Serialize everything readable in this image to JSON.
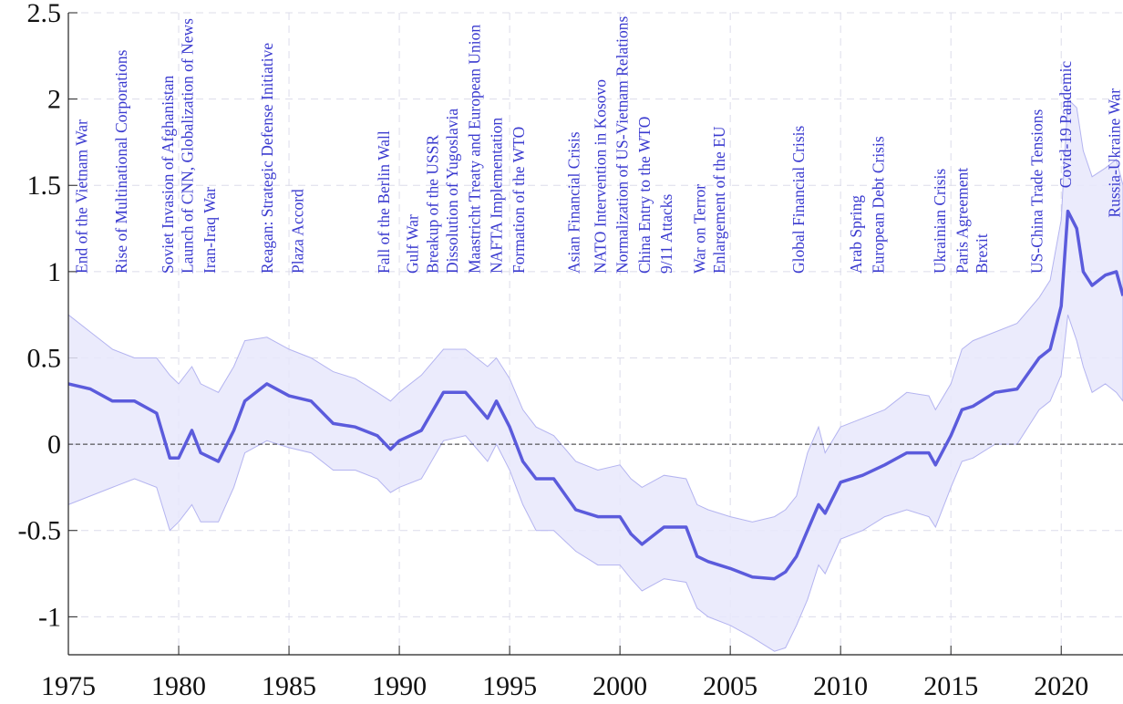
{
  "chart_data": {
    "type": "line",
    "x": [
      1975,
      1976,
      1977,
      1978,
      1979,
      1979.6,
      1980,
      1980.6,
      1981,
      1981.8,
      1982.5,
      1983,
      1984,
      1985,
      1986,
      1987,
      1988,
      1989,
      1989.6,
      1990,
      1991,
      1992,
      1993,
      1994,
      1994.4,
      1995,
      1995.6,
      1996.2,
      1997,
      1998,
      1999,
      2000,
      2000.5,
      2001,
      2002,
      2003,
      2003.5,
      2004,
      2005,
      2006,
      2007,
      2007.5,
      2008,
      2008.5,
      2009,
      2009.3,
      2010,
      2011,
      2012,
      2013,
      2014,
      2014.3,
      2015,
      2015.5,
      2016,
      2017,
      2018,
      2019,
      2019.5,
      2020,
      2020.3,
      2020.7,
      2021,
      2021.4,
      2022,
      2022.5,
      2022.8
    ],
    "values": [
      0.35,
      0.32,
      0.25,
      0.25,
      0.18,
      -0.08,
      -0.08,
      0.08,
      -0.05,
      -0.1,
      0.08,
      0.25,
      0.35,
      0.28,
      0.25,
      0.12,
      0.1,
      0.05,
      -0.03,
      0.02,
      0.08,
      0.3,
      0.3,
      0.15,
      0.25,
      0.1,
      -0.1,
      -0.2,
      -0.2,
      -0.38,
      -0.42,
      -0.42,
      -0.52,
      -0.58,
      -0.48,
      -0.48,
      -0.65,
      -0.68,
      -0.72,
      -0.77,
      -0.78,
      -0.74,
      -0.65,
      -0.5,
      -0.35,
      -0.4,
      -0.22,
      -0.18,
      -0.12,
      -0.05,
      -0.05,
      -0.12,
      0.05,
      0.2,
      0.22,
      0.3,
      0.32,
      0.5,
      0.55,
      0.8,
      1.35,
      1.25,
      1.0,
      0.92,
      0.98,
      1.0,
      0.86
    ],
    "upper": [
      0.75,
      0.65,
      0.55,
      0.5,
      0.5,
      0.4,
      0.35,
      0.45,
      0.35,
      0.3,
      0.45,
      0.6,
      0.62,
      0.55,
      0.5,
      0.42,
      0.38,
      0.3,
      0.25,
      0.3,
      0.4,
      0.55,
      0.55,
      0.45,
      0.5,
      0.38,
      0.2,
      0.1,
      0.05,
      -0.1,
      -0.15,
      -0.12,
      -0.2,
      -0.25,
      -0.18,
      -0.2,
      -0.35,
      -0.38,
      -0.42,
      -0.45,
      -0.42,
      -0.38,
      -0.3,
      -0.05,
      0.1,
      -0.05,
      0.1,
      0.15,
      0.2,
      0.3,
      0.28,
      0.2,
      0.35,
      0.55,
      0.6,
      0.65,
      0.7,
      0.85,
      0.95,
      1.3,
      2.0,
      1.95,
      1.7,
      1.55,
      1.6,
      1.65,
      1.5
    ],
    "lower": [
      -0.35,
      -0.3,
      -0.25,
      -0.2,
      -0.25,
      -0.5,
      -0.45,
      -0.35,
      -0.45,
      -0.45,
      -0.25,
      -0.05,
      0.02,
      -0.02,
      -0.05,
      -0.15,
      -0.15,
      -0.2,
      -0.28,
      -0.25,
      -0.2,
      0.02,
      0.05,
      -0.1,
      0.0,
      -0.15,
      -0.35,
      -0.5,
      -0.5,
      -0.62,
      -0.7,
      -0.7,
      -0.78,
      -0.85,
      -0.78,
      -0.8,
      -0.95,
      -1.0,
      -1.05,
      -1.12,
      -1.2,
      -1.18,
      -1.05,
      -0.9,
      -0.7,
      -0.75,
      -0.55,
      -0.5,
      -0.42,
      -0.38,
      -0.42,
      -0.48,
      -0.25,
      -0.1,
      -0.08,
      0.0,
      0.0,
      0.2,
      0.25,
      0.4,
      0.75,
      0.6,
      0.45,
      0.3,
      0.35,
      0.3,
      0.25
    ],
    "color": "#5b5bdc",
    "band_color": "#e8e8fb",
    "band_edge": "#b4b4f0",
    "events": [
      {
        "label": "End of the Vietnam War",
        "x": 1975.6
      },
      {
        "label": "Rise of Multinational Corporations",
        "x": 1977.4
      },
      {
        "label": "Soviet Invasion of Afghanistan",
        "x": 1979.5
      },
      {
        "label": "Launch of CNN, Globalization of News",
        "x": 1980.4
      },
      {
        "label": "Iran-Iraq War",
        "x": 1981.4
      },
      {
        "label": "Reagan: Strategic Defense Initiative",
        "x": 1984.0
      },
      {
        "label": "Plaza Accord",
        "x": 1985.4
      },
      {
        "label": "Fall of the Berlin Wall",
        "x": 1989.3
      },
      {
        "label": "Gulf War",
        "x": 1990.6
      },
      {
        "label": "Breakup of the USSR",
        "x": 1991.5
      },
      {
        "label": "Dissolution of Yugoslavia",
        "x": 1992.4
      },
      {
        "label": "Maastricht Treaty and European Union",
        "x": 1993.4
      },
      {
        "label": "NAFTA Implementation",
        "x": 1994.4
      },
      {
        "label": "Formation of the WTO",
        "x": 1995.4
      },
      {
        "label": "Asian Financial Crisis",
        "x": 1997.9
      },
      {
        "label": "NATO Intervention in Kosovo",
        "x": 1999.1
      },
      {
        "label": "Normalization of US-Vietnam Relations",
        "x": 2000.1
      },
      {
        "label": "China Entry to the WTO",
        "x": 2001.1
      },
      {
        "label": "9/11 Attacks",
        "x": 2002.1
      },
      {
        "label": "War on Terror",
        "x": 2003.6
      },
      {
        "label": "Enlargement of the EU",
        "x": 2004.5
      },
      {
        "label": "Global Financial Crisis",
        "x": 2008.1
      },
      {
        "label": "Arab Spring",
        "x": 2010.7
      },
      {
        "label": "European Debt Crisis",
        "x": 2011.7
      },
      {
        "label": "Ukrainian Crisis",
        "x": 2014.5
      },
      {
        "label": "Paris Agreement",
        "x": 2015.5
      },
      {
        "label": "Brexit",
        "x": 2016.4
      },
      {
        "label": "US-China Trade Tensions",
        "x": 2018.9
      },
      {
        "label": "Covid-19 Pandemic",
        "x": 2020.2
      },
      {
        "label": "Russia-Ukraine War",
        "x": 2022.4
      }
    ],
    "xlim": [
      1975,
      2022.8
    ],
    "ylim": [
      -1.22,
      2.5
    ],
    "xticks": [
      1975,
      1980,
      1985,
      1990,
      1995,
      2000,
      2005,
      2010,
      2015,
      2020
    ],
    "yticks": [
      -1,
      -0.5,
      0,
      0.5,
      1,
      1.5,
      2,
      2.5
    ],
    "grid": true,
    "zero_line": true
  }
}
